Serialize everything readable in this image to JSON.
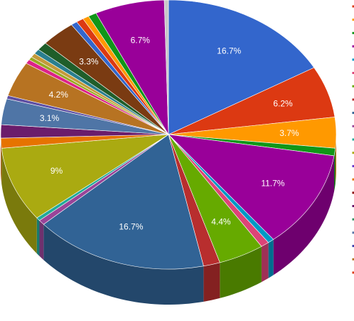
{
  "chart_data": {
    "type": "pie",
    "style": "3d",
    "start_angle_deg": 0,
    "direction": "clockwise",
    "slices": [
      {
        "value": 16.7,
        "label": "16.7%",
        "color": "#3366cc"
      },
      {
        "value": 6.2,
        "label": "6.2%",
        "color": "#dc3912"
      },
      {
        "value": 3.7,
        "label": "3.7%",
        "color": "#ff9900"
      },
      {
        "value": 0.9,
        "label": "",
        "color": "#109618"
      },
      {
        "value": 11.7,
        "label": "11.7%",
        "color": "#990099"
      },
      {
        "value": 0.6,
        "label": "",
        "color": "#0099c6"
      },
      {
        "value": 0.8,
        "label": "",
        "color": "#dd4477"
      },
      {
        "value": 4.4,
        "label": "4.4%",
        "color": "#66aa00"
      },
      {
        "value": 1.6,
        "label": "",
        "color": "#b82e2e"
      },
      {
        "value": 16.7,
        "label": "16.7%",
        "color": "#316395"
      },
      {
        "value": 0.6,
        "label": "",
        "color": "#994499"
      },
      {
        "value": 0.4,
        "label": "",
        "color": "#22aa99"
      },
      {
        "value": 9.0,
        "label": "9%",
        "color": "#aaaa11"
      },
      {
        "value": 1.2,
        "label": "",
        "color": "#e67300"
      },
      {
        "value": 1.6,
        "label": "",
        "color": "#6b1d6b"
      },
      {
        "value": 3.1,
        "label": "3.1%",
        "color": "#4f75a6"
      },
      {
        "value": 0.4,
        "label": "",
        "color": "#5e4fa2"
      },
      {
        "value": 4.2,
        "label": "4.2%",
        "color": "#b77322"
      },
      {
        "value": 0.5,
        "label": "",
        "color": "#dd2288"
      },
      {
        "value": 0.4,
        "label": "",
        "color": "#99aa22"
      },
      {
        "value": 0.5,
        "label": "",
        "color": "#c49a3a"
      },
      {
        "value": 0.6,
        "label": "",
        "color": "#2a7f8f"
      },
      {
        "value": 1.0,
        "label": "",
        "color": "#1f5e2a"
      },
      {
        "value": 3.3,
        "label": "3.3%",
        "color": "#7a3b12"
      },
      {
        "value": 0.6,
        "label": "",
        "color": "#3366cc"
      },
      {
        "value": 0.7,
        "label": "",
        "color": "#dc3912"
      },
      {
        "value": 0.6,
        "label": "",
        "color": "#ff9900"
      },
      {
        "value": 0.8,
        "label": "",
        "color": "#109618"
      },
      {
        "value": 6.7,
        "label": "6.7%",
        "color": "#990099"
      },
      {
        "value": 0.4,
        "label": "",
        "color": "#c8c8c8"
      }
    ],
    "legend": {
      "placement": "right",
      "entries": [
        "",
        "",
        "",
        "",
        "",
        "",
        "",
        "",
        "",
        "",
        "",
        "",
        "",
        "",
        "",
        "",
        "",
        "",
        "",
        "",
        ""
      ]
    }
  },
  "legend_colors": [
    "#dc3912",
    "#ff9900",
    "#109618",
    "#990099",
    "#0099c6",
    "#dd4477",
    "#66aa00",
    "#b82e2e",
    "#316395",
    "#994499",
    "#22aa99",
    "#aaaa11",
    "#6633cc",
    "#e67300",
    "#8b0707",
    "#651067",
    "#329262",
    "#5574a6",
    "#3b3eac",
    "#b77322",
    "#dc3912"
  ]
}
